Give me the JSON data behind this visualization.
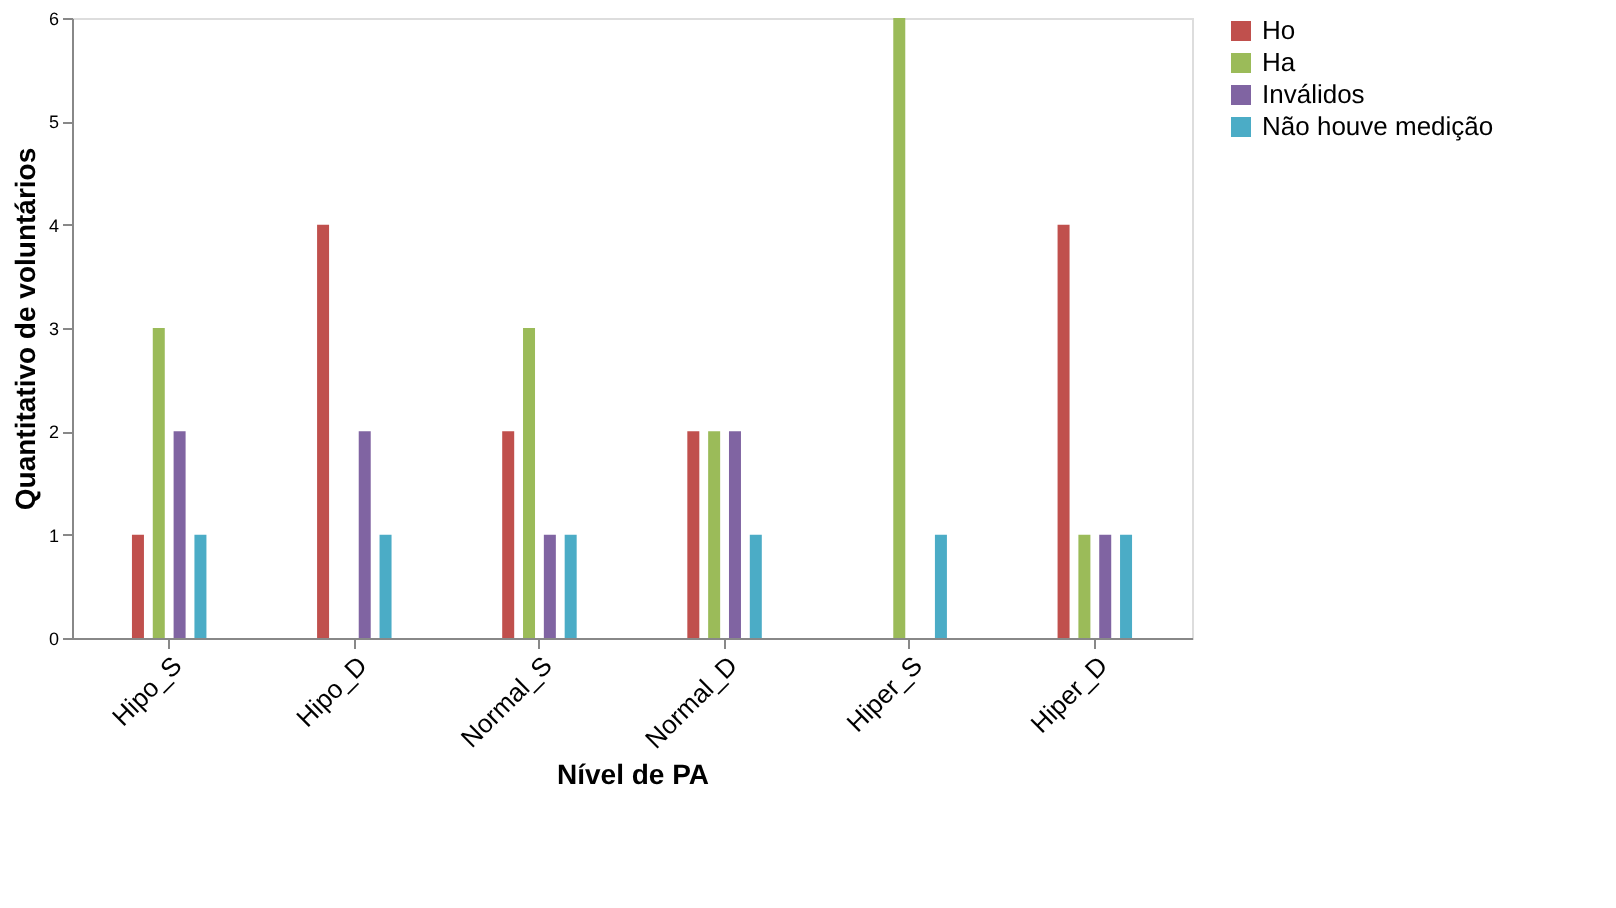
{
  "chart_data": {
    "type": "bar",
    "xlabel": "Nível de PA",
    "ylabel": "Quantitativo de voluntários",
    "categories": [
      "Hipo_S",
      "Hipo_D",
      "Normal_S",
      "Normal_D",
      "Hiper_S",
      "Hiper_D"
    ],
    "series": [
      {
        "name": "Ho",
        "color": "#c0504d",
        "values": [
          1,
          4,
          2,
          2,
          0,
          4
        ]
      },
      {
        "name": "Ha",
        "color": "#9bbb59",
        "values": [
          3,
          0,
          3,
          2,
          6,
          1
        ]
      },
      {
        "name": "Inválidos",
        "color": "#8064a2",
        "values": [
          2,
          2,
          1,
          2,
          0,
          1
        ]
      },
      {
        "name": "Não houve medição",
        "color": "#4bacc6",
        "values": [
          1,
          1,
          1,
          1,
          1,
          1
        ]
      }
    ],
    "ylim": [
      0,
      6
    ],
    "yticks": [
      0,
      1,
      2,
      3,
      4,
      5,
      6
    ],
    "grid": false,
    "legend": "right"
  }
}
